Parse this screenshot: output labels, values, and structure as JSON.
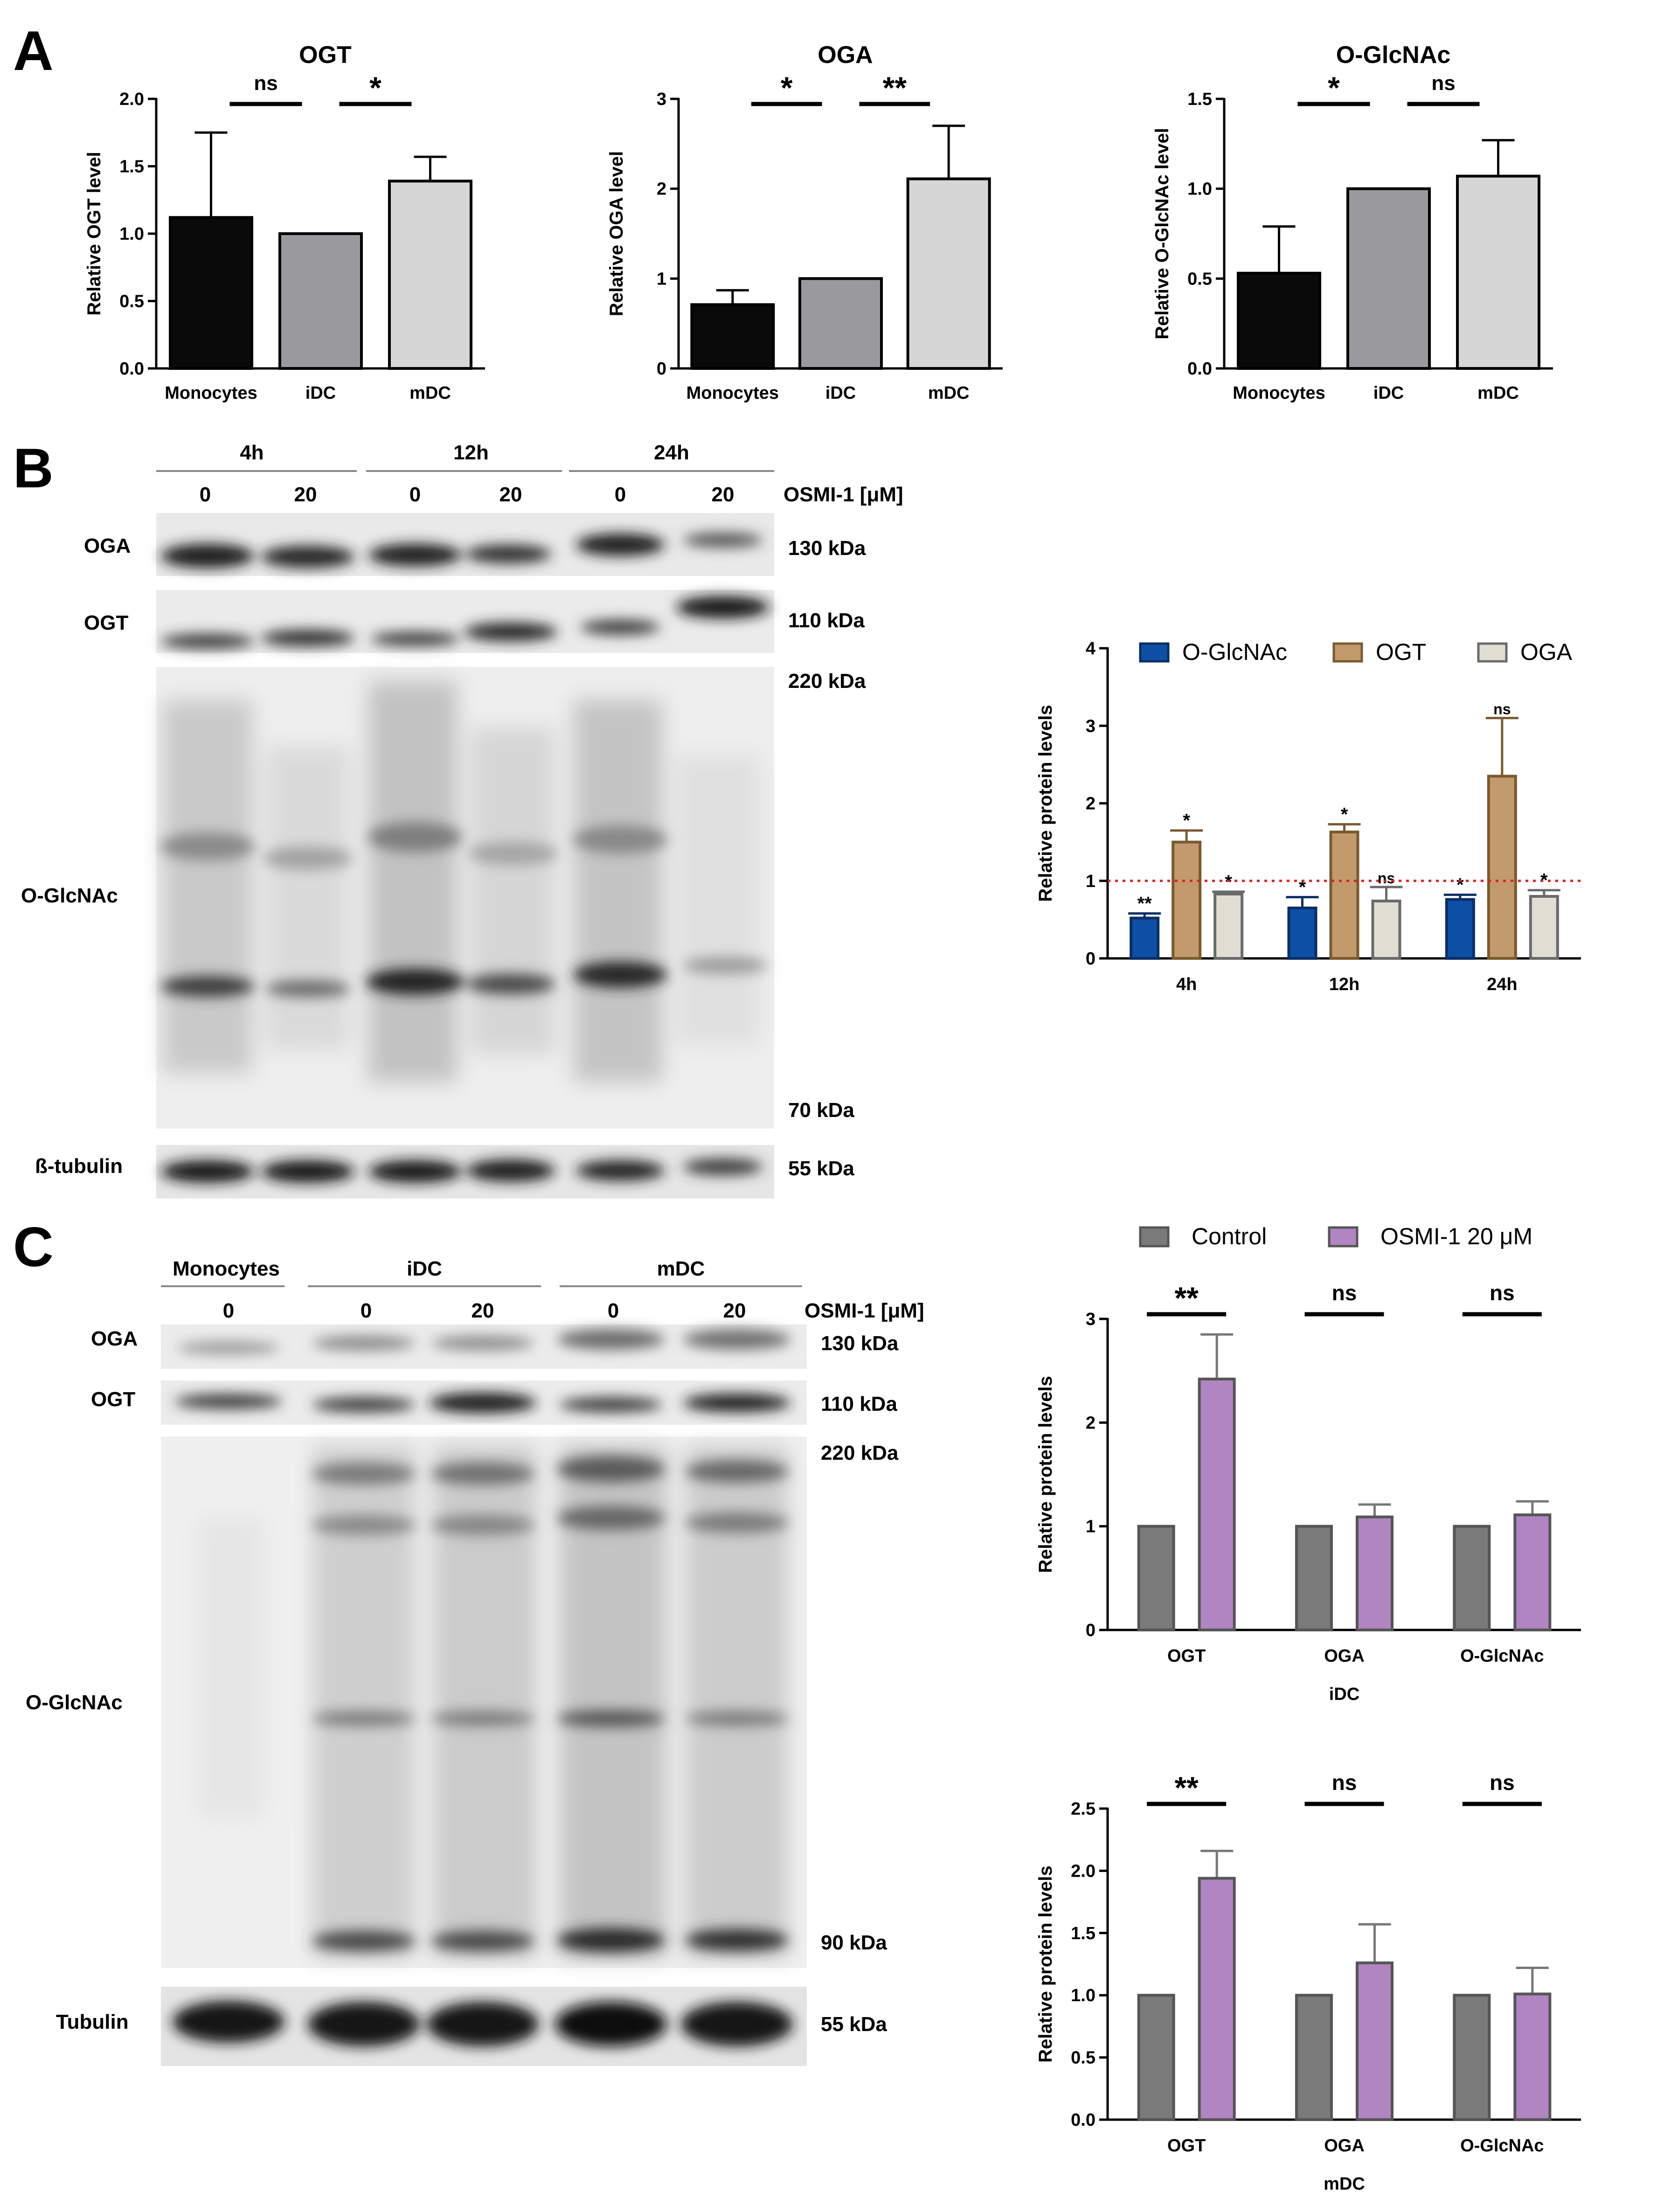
{
  "panel_labels": [
    "A",
    "B",
    "C"
  ],
  "colors": {
    "black": "#0a0a0a",
    "mid_gray": "#9a9a9e",
    "light_gray": "#d6d6d6",
    "blue": "#0e4fa6",
    "tan": "#c29a6b",
    "cream": "#e2ddd2",
    "dark_gray": "#7a7a7a",
    "purple": "#b085c1",
    "ref_line": "#e02020"
  },
  "chart_data": [
    {
      "id": "A-OGT",
      "type": "bar",
      "title": "OGT",
      "ylabel": "Relative OGT level",
      "categories": [
        "Monocytes",
        "iDC",
        "mDC"
      ],
      "values": [
        1.12,
        1.0,
        1.39
      ],
      "errors": [
        0.63,
        0,
        0.18
      ],
      "ylim": [
        0,
        2.0
      ],
      "yticks": [
        "0.0",
        "0.5",
        "1.0",
        "1.5",
        "2.0"
      ],
      "significance": [
        {
          "between": [
            "Monocytes",
            "iDC"
          ],
          "label": "ns"
        },
        {
          "between": [
            "iDC",
            "mDC"
          ],
          "label": "*"
        }
      ]
    },
    {
      "id": "A-OGA",
      "type": "bar",
      "title": "OGA",
      "ylabel": "Relative OGA level",
      "categories": [
        "Monocytes",
        "iDC",
        "mDC"
      ],
      "values": [
        0.71,
        1.0,
        2.11
      ],
      "errors": [
        0.16,
        0,
        0.59
      ],
      "ylim": [
        0,
        3
      ],
      "yticks": [
        "0",
        "1",
        "2",
        "3"
      ],
      "significance": [
        {
          "between": [
            "Monocytes",
            "iDC"
          ],
          "label": "*"
        },
        {
          "between": [
            "iDC",
            "mDC"
          ],
          "label": "**"
        }
      ]
    },
    {
      "id": "A-OGlcNAc",
      "type": "bar",
      "title": "O-GlcNAc",
      "ylabel": "Relative O-GlcNAc level",
      "categories": [
        "Monocytes",
        "iDC",
        "mDC"
      ],
      "values": [
        0.53,
        1.0,
        1.07
      ],
      "errors": [
        0.26,
        0,
        0.2
      ],
      "ylim": [
        0,
        1.5
      ],
      "yticks": [
        "0.0",
        "0.5",
        "1.0",
        "1.5"
      ],
      "significance": [
        {
          "between": [
            "Monocytes",
            "iDC"
          ],
          "label": "*"
        },
        {
          "between": [
            "iDC",
            "mDC"
          ],
          "label": "ns"
        }
      ]
    },
    {
      "id": "B-time",
      "type": "bar",
      "ylabel": "Relative protein levels",
      "categories": [
        "4h",
        "12h",
        "24h"
      ],
      "series": [
        {
          "name": "O-GlcNAc",
          "values": [
            0.52,
            0.65,
            0.76
          ],
          "errors": [
            0.06,
            0.14,
            0.06
          ],
          "sig": [
            "**",
            "*",
            "*"
          ]
        },
        {
          "name": "OGT",
          "values": [
            1.5,
            1.63,
            2.35
          ],
          "errors": [
            0.15,
            0.1,
            0.75
          ],
          "sig": [
            "*",
            "*",
            "ns"
          ]
        },
        {
          "name": "OGA",
          "values": [
            0.83,
            0.74,
            0.8
          ],
          "errors": [
            0.03,
            0.18,
            0.08
          ],
          "sig": [
            "*",
            "ns",
            "*"
          ]
        }
      ],
      "ylim": [
        0,
        4
      ],
      "yticks": [
        "0",
        "1",
        "2",
        "3",
        "4"
      ],
      "reference_line": 1,
      "legend": "top"
    },
    {
      "id": "C-iDC",
      "type": "bar",
      "ylabel": "Relative protein levels",
      "xlabel": "iDC",
      "categories": [
        "OGT",
        "OGA",
        "O-GlcNAc"
      ],
      "series": [
        {
          "name": "Control",
          "values": [
            1,
            1,
            1
          ],
          "errors": [
            0,
            0,
            0
          ]
        },
        {
          "name": "OSMI-1 20 μM",
          "values": [
            2.42,
            1.09,
            1.11
          ],
          "errors": [
            0.43,
            0.12,
            0.13
          ]
        }
      ],
      "significance": [
        "**",
        "ns",
        "ns"
      ],
      "ylim": [
        0,
        3
      ],
      "yticks": [
        "0",
        "1",
        "2",
        "3"
      ],
      "legend": "top"
    },
    {
      "id": "C-mDC",
      "type": "bar",
      "ylabel": "Relative protein levels",
      "xlabel": "mDC",
      "categories": [
        "OGT",
        "OGA",
        "O-GlcNAc"
      ],
      "series": [
        {
          "name": "Control",
          "values": [
            1,
            1,
            1
          ],
          "errors": [
            0,
            0,
            0
          ]
        },
        {
          "name": "OSMI-1 20 μM",
          "values": [
            1.94,
            1.26,
            1.01
          ],
          "errors": [
            0.22,
            0.31,
            0.21
          ]
        }
      ],
      "significance": [
        "**",
        "ns",
        "ns"
      ],
      "ylim": [
        0,
        2.5
      ],
      "yticks": [
        "0.0",
        "0.5",
        "1.0",
        "1.5",
        "2.0",
        "2.5"
      ]
    }
  ],
  "blot_B": {
    "groups": [
      "4h",
      "12h",
      "24h"
    ],
    "lanes": [
      "0",
      "20",
      "0",
      "20",
      "0",
      "20"
    ],
    "treatment_label": "OSMI-1 [μM]",
    "rows": [
      "OGA",
      "OGT",
      "O-GlcNAc",
      "ß-tubulin"
    ],
    "markers": [
      "130 kDa",
      "110 kDa",
      "220 kDa",
      "70 kDa",
      "55 kDa"
    ]
  },
  "blot_C": {
    "groups": [
      "Monocytes",
      "iDC",
      "mDC"
    ],
    "lanes": [
      "0",
      "0",
      "20",
      "0",
      "20"
    ],
    "treatment_label": "OSMI-1 [μM]",
    "rows": [
      "OGA",
      "OGT",
      "O-GlcNAc",
      "Tubulin"
    ],
    "markers": [
      "130 kDa",
      "110 kDa",
      "220 kDa",
      "90 kDa",
      "55 kDa"
    ]
  }
}
